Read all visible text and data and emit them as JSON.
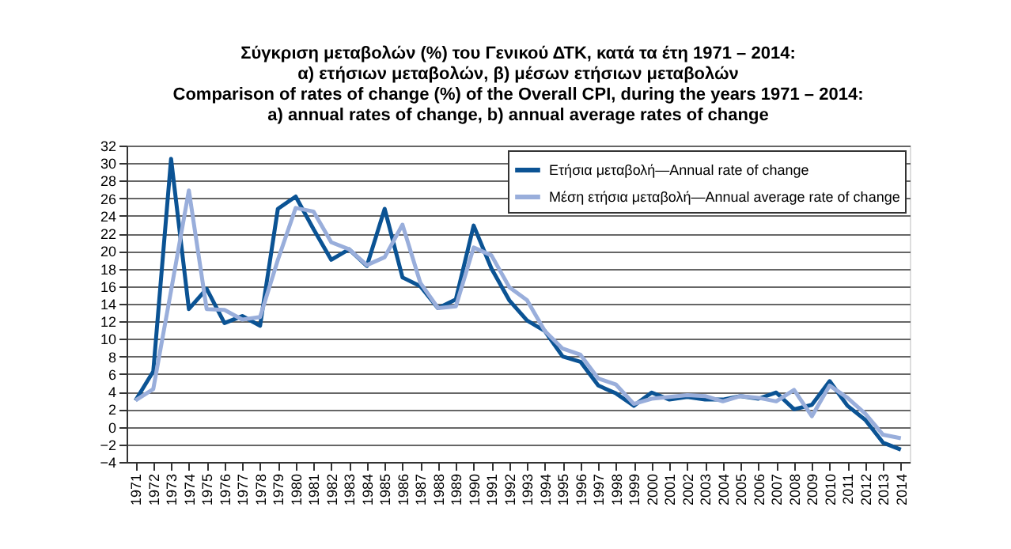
{
  "chart_data": {
    "type": "line",
    "title": [
      "Σύγκριση μεταβολών (%) του Γενικού ΔΤΚ, κατά τα έτη 1971 – 2014:",
      "α) ετήσιων μεταβολών, β) μέσων ετήσιων μεταβολών",
      "Comparison of rates of change (%) of the Overall CPI, during the years 1971 – 2014:",
      "a) annual rates of change, b) annual average rates of change"
    ],
    "categories": [
      "1971",
      "1972",
      "1973",
      "1974",
      "1975",
      "1976",
      "1977",
      "1978",
      "1979",
      "1980",
      "1981",
      "1982",
      "1983",
      "1984",
      "1985",
      "1986",
      "1987",
      "1988",
      "1989",
      "1990",
      "1991",
      "1992",
      "1993",
      "1994",
      "1995",
      "1996",
      "1997",
      "1998",
      "1999",
      "2000",
      "2001",
      "2002",
      "2003",
      "2004",
      "2005",
      "2006",
      "2007",
      "2008",
      "2009",
      "2010",
      "2011",
      "2012",
      "2013",
      "2014"
    ],
    "series": [
      {
        "name": "Ετήσια μεταβολή—Annual rate of change",
        "color": "#0b5394",
        "values": [
          3.0,
          6.3,
          30.5,
          13.4,
          15.7,
          11.8,
          12.6,
          11.5,
          24.8,
          26.2,
          22.5,
          19.0,
          20.2,
          18.3,
          24.8,
          17.0,
          16.0,
          13.5,
          14.5,
          22.9,
          18.0,
          14.4,
          12.1,
          10.9,
          8.0,
          7.4,
          4.7,
          3.8,
          2.4,
          3.9,
          3.1,
          3.4,
          3.1,
          3.1,
          3.5,
          3.2,
          3.9,
          2.0,
          2.5,
          5.2,
          2.4,
          0.8,
          -1.8,
          -2.6
        ]
      },
      {
        "name": "Μέση ετήσια μεταβολή—Annual average rate of change",
        "color": "#99aedb",
        "values": [
          3.0,
          4.3,
          15.5,
          26.9,
          13.4,
          13.3,
          12.2,
          12.5,
          19.0,
          24.9,
          24.5,
          21.0,
          20.2,
          18.4,
          19.3,
          23.0,
          16.4,
          13.5,
          13.7,
          20.4,
          19.5,
          15.9,
          14.4,
          10.9,
          8.9,
          8.2,
          5.5,
          4.8,
          2.6,
          3.2,
          3.4,
          3.6,
          3.5,
          2.9,
          3.5,
          3.3,
          2.9,
          4.2,
          1.2,
          4.7,
          3.3,
          1.5,
          -0.9,
          -1.3
        ]
      }
    ],
    "ylim": [
      -4,
      32
    ],
    "yticks": [
      -4,
      -2,
      0,
      2,
      4,
      6,
      8,
      10,
      12,
      14,
      16,
      18,
      20,
      22,
      24,
      26,
      28,
      30,
      32
    ],
    "grid": "y",
    "legend": "top right",
    "marker": "none",
    "line_style": "solid"
  }
}
